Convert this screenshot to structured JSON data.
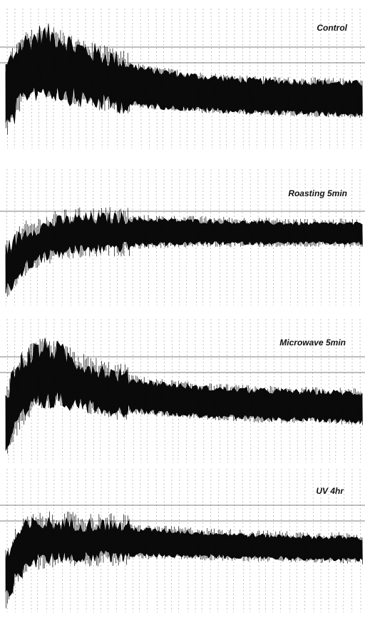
{
  "chart_data": [
    {
      "type": "area",
      "title": "Control",
      "x": [
        0,
        0.03,
        0.06,
        0.1,
        0.15,
        0.2,
        0.3,
        0.4,
        0.55,
        0.7,
        0.85,
        1.0
      ],
      "series": [
        {
          "lower": [
            0.12,
            0.3,
            0.42,
            0.45,
            0.43,
            0.38,
            0.33,
            0.3,
            0.27,
            0.25,
            0.24,
            0.23
          ],
          "upper": [
            0.52,
            0.68,
            0.75,
            0.8,
            0.78,
            0.7,
            0.62,
            0.55,
            0.5,
            0.47,
            0.46,
            0.45
          ]
        }
      ]
    },
    {
      "type": "area",
      "title": "Roasting 5min",
      "x": [
        0,
        0.03,
        0.06,
        0.1,
        0.15,
        0.2,
        0.3,
        0.4,
        0.55,
        0.7,
        0.85,
        1.0
      ],
      "series": [
        {
          "lower": [
            0.08,
            0.2,
            0.3,
            0.36,
            0.4,
            0.42,
            0.44,
            0.45,
            0.46,
            0.46,
            0.46,
            0.46
          ],
          "upper": [
            0.35,
            0.45,
            0.52,
            0.56,
            0.6,
            0.62,
            0.63,
            0.63,
            0.62,
            0.61,
            0.6,
            0.6
          ]
        }
      ]
    },
    {
      "type": "area",
      "title": "Microwave 5min",
      "x": [
        0,
        0.03,
        0.06,
        0.1,
        0.15,
        0.2,
        0.3,
        0.4,
        0.55,
        0.7,
        0.85,
        1.0
      ],
      "series": [
        {
          "lower": [
            0.1,
            0.25,
            0.38,
            0.45,
            0.46,
            0.43,
            0.38,
            0.35,
            0.32,
            0.3,
            0.29,
            0.28
          ],
          "upper": [
            0.45,
            0.62,
            0.72,
            0.78,
            0.76,
            0.68,
            0.6,
            0.55,
            0.51,
            0.49,
            0.48,
            0.47
          ]
        }
      ]
    },
    {
      "type": "area",
      "title": "UV 4hr",
      "x": [
        0,
        0.03,
        0.06,
        0.1,
        0.15,
        0.2,
        0.3,
        0.4,
        0.55,
        0.7,
        0.85,
        1.0
      ],
      "series": [
        {
          "lower": [
            0.08,
            0.25,
            0.35,
            0.38,
            0.4,
            0.4,
            0.4,
            0.4,
            0.39,
            0.38,
            0.37,
            0.36
          ],
          "upper": [
            0.32,
            0.5,
            0.58,
            0.6,
            0.6,
            0.6,
            0.59,
            0.57,
            0.55,
            0.53,
            0.52,
            0.51
          ]
        }
      ]
    }
  ],
  "colors": {
    "trace": "#0a0a0a",
    "grid": "#b5b5b5",
    "rule": "#555555"
  }
}
